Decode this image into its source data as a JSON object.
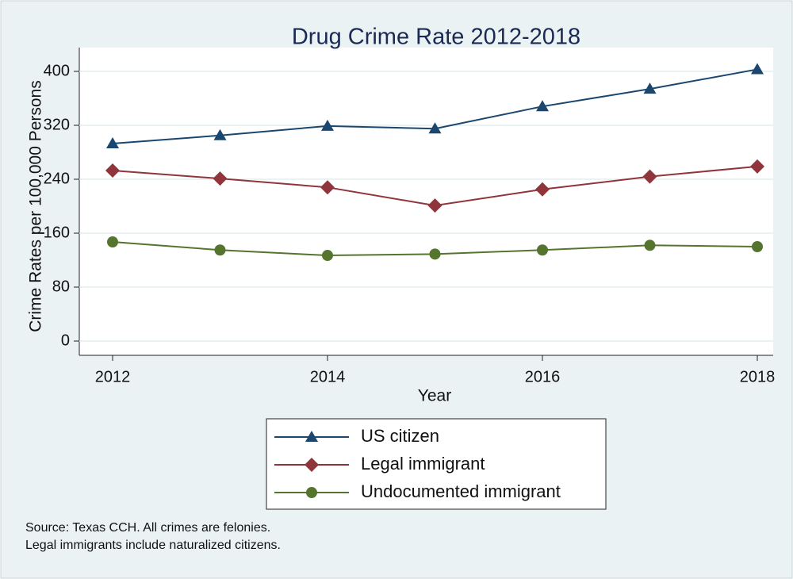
{
  "chart_data": {
    "type": "line",
    "title": "Drug Crime Rate 2012-2018",
    "x_label": "Year",
    "y_label": "Crime Rates per 100,000 Persons",
    "x": [
      2012,
      2013,
      2014,
      2015,
      2016,
      2017,
      2018
    ],
    "xlim": [
      2012,
      2018
    ],
    "xticks": [
      2012,
      2014,
      2016,
      2018
    ],
    "ylim": [
      0,
      400
    ],
    "yticks": [
      0,
      80,
      160,
      240,
      320,
      400
    ],
    "grid": true,
    "series": [
      {
        "name": "US citizen",
        "color": "#1a476f",
        "marker": "triangle",
        "values": [
          293,
          305,
          319,
          315,
          348,
          374,
          403
        ]
      },
      {
        "name": "Legal immigrant",
        "color": "#90353b",
        "marker": "diamond",
        "values": [
          253,
          241,
          228,
          201,
          225,
          244,
          259
        ]
      },
      {
        "name": "Undocumented immigrant",
        "color": "#55752f",
        "marker": "circle",
        "values": [
          147,
          135,
          127,
          129,
          135,
          142,
          140
        ]
      }
    ],
    "notes": [
      "Source: Texas CCH. All crimes are felonies.",
      "Legal immigrants include naturalized citizens."
    ]
  }
}
